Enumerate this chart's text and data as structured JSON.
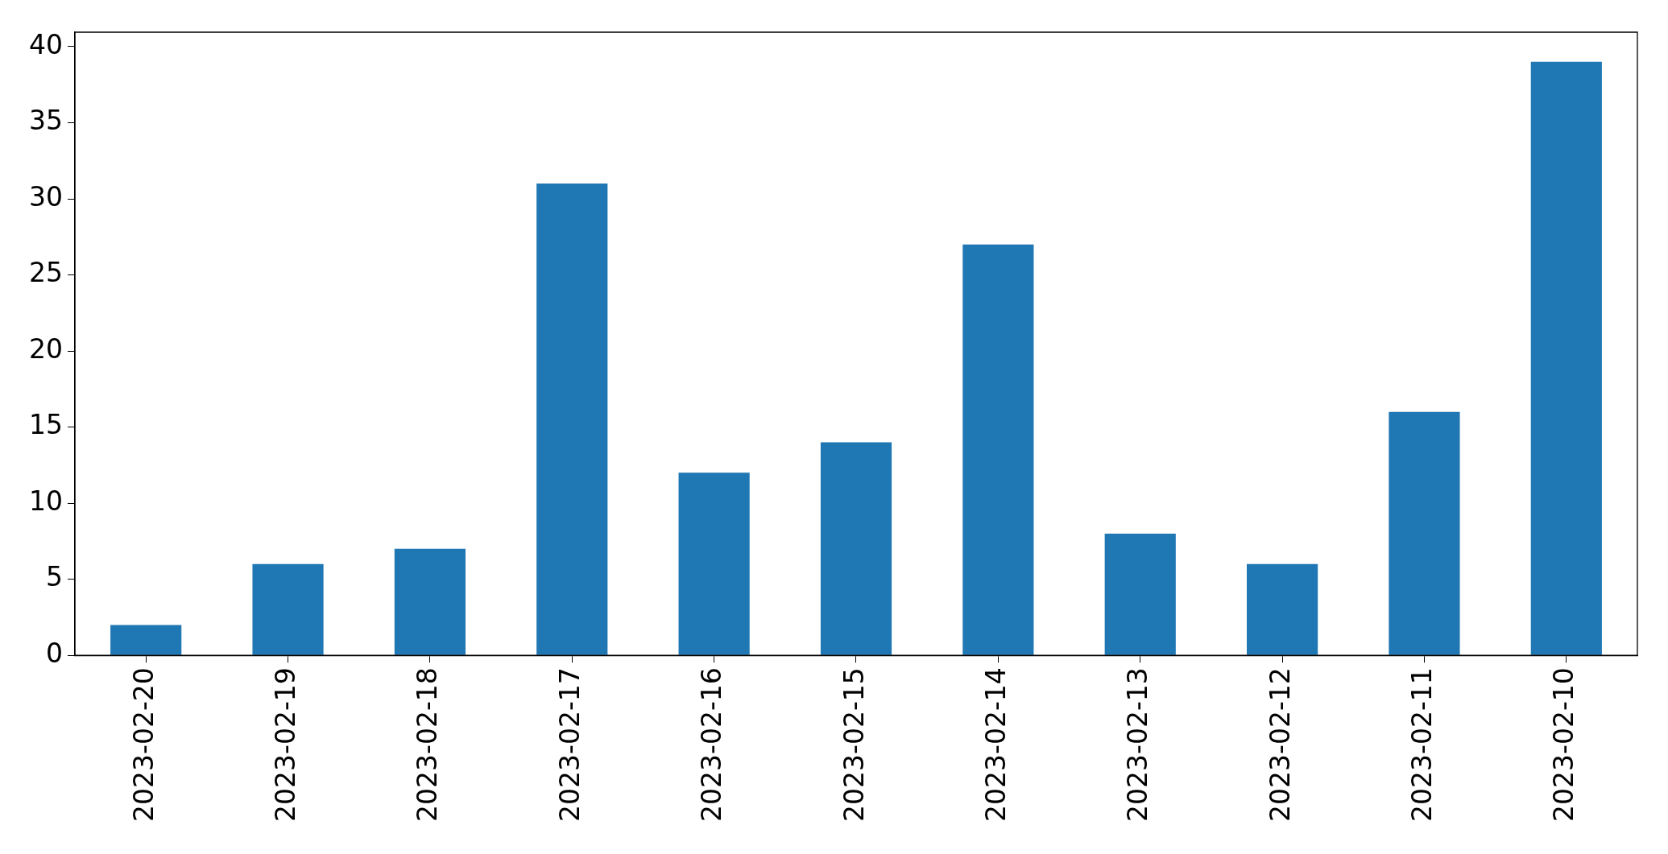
{
  "chart_data": {
    "type": "bar",
    "categories": [
      "2023-02-20",
      "2023-02-19",
      "2023-02-18",
      "2023-02-17",
      "2023-02-16",
      "2023-02-15",
      "2023-02-14",
      "2023-02-13",
      "2023-02-12",
      "2023-02-11",
      "2023-02-10"
    ],
    "values": [
      2,
      6,
      7,
      31,
      12,
      14,
      27,
      8,
      6,
      16,
      39
    ],
    "color": "#1f77b4",
    "ylim": [
      0,
      40.95
    ],
    "yticks": [
      0,
      5,
      10,
      15,
      20,
      25,
      30,
      35,
      40
    ],
    "grid": false,
    "legend": false
  }
}
